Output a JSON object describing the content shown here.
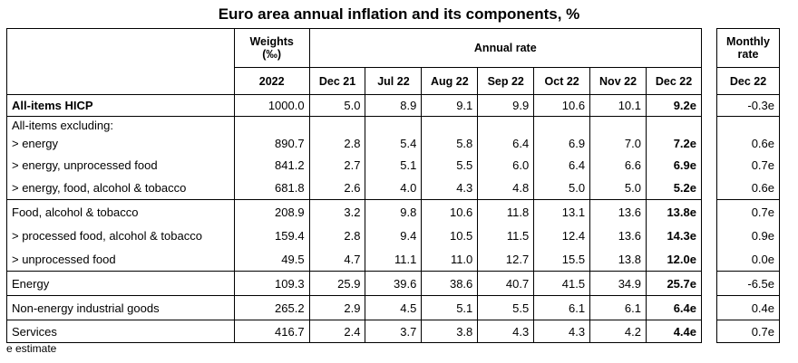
{
  "title": "Euro area annual inflation and its components, %",
  "headers": {
    "weights": "Weights (‰)",
    "weights_line1": "Weights",
    "weights_line2": "(‰)",
    "annual_rate": "Annual rate",
    "monthly_rate": "Monthly rate",
    "monthly_line1": "Monthly",
    "monthly_line2": "rate",
    "year": "2022",
    "periods": [
      "Dec 21",
      "Jul 22",
      "Aug 22",
      "Sep 22",
      "Oct 22",
      "Nov 22",
      "Dec 22"
    ],
    "monthly_period": "Dec 22"
  },
  "rows": [
    {
      "label": "All-items HICP",
      "weight": "1000.0",
      "rates": [
        "5.0",
        "8.9",
        "9.1",
        "9.9",
        "10.6",
        "10.1",
        "9.2e"
      ],
      "monthly": "-0.3e"
    },
    {
      "label": "All-items excluding:"
    },
    {
      "label": "> energy",
      "weight": "890.7",
      "rates": [
        "2.8",
        "5.4",
        "5.8",
        "6.4",
        "6.9",
        "7.0",
        "7.2e"
      ],
      "monthly": "0.6e"
    },
    {
      "label": "> energy, unprocessed food",
      "weight": "841.2",
      "rates": [
        "2.7",
        "5.1",
        "5.5",
        "6.0",
        "6.4",
        "6.6",
        "6.9e"
      ],
      "monthly": "0.7e"
    },
    {
      "label": "> energy, food, alcohol & tobacco",
      "weight": "681.8",
      "rates": [
        "2.6",
        "4.0",
        "4.3",
        "4.8",
        "5.0",
        "5.0",
        "5.2e"
      ],
      "monthly": "0.6e"
    },
    {
      "label": "Food, alcohol & tobacco",
      "weight": "208.9",
      "rates": [
        "3.2",
        "9.8",
        "10.6",
        "11.8",
        "13.1",
        "13.6",
        "13.8e"
      ],
      "monthly": "0.7e"
    },
    {
      "label": "> processed food, alcohol & tobacco",
      "weight": "159.4",
      "rates": [
        "2.8",
        "9.4",
        "10.5",
        "11.5",
        "12.4",
        "13.6",
        "14.3e"
      ],
      "monthly": "0.9e"
    },
    {
      "label": "> unprocessed food",
      "weight": "49.5",
      "rates": [
        "4.7",
        "11.1",
        "11.0",
        "12.7",
        "15.5",
        "13.8",
        "12.0e"
      ],
      "monthly": "0.0e"
    },
    {
      "label": "Energy",
      "weight": "109.3",
      "rates": [
        "25.9",
        "39.6",
        "38.6",
        "40.7",
        "41.5",
        "34.9",
        "25.7e"
      ],
      "monthly": "-6.5e"
    },
    {
      "label": "Non-energy industrial goods",
      "weight": "265.2",
      "rates": [
        "2.9",
        "4.5",
        "5.1",
        "5.5",
        "6.1",
        "6.1",
        "6.4e"
      ],
      "monthly": "0.4e"
    },
    {
      "label": "Services",
      "weight": "416.7",
      "rates": [
        "2.4",
        "3.7",
        "3.8",
        "4.3",
        "4.3",
        "4.2",
        "4.4e"
      ],
      "monthly": "0.7e"
    }
  ],
  "footnote": "e estimate"
}
